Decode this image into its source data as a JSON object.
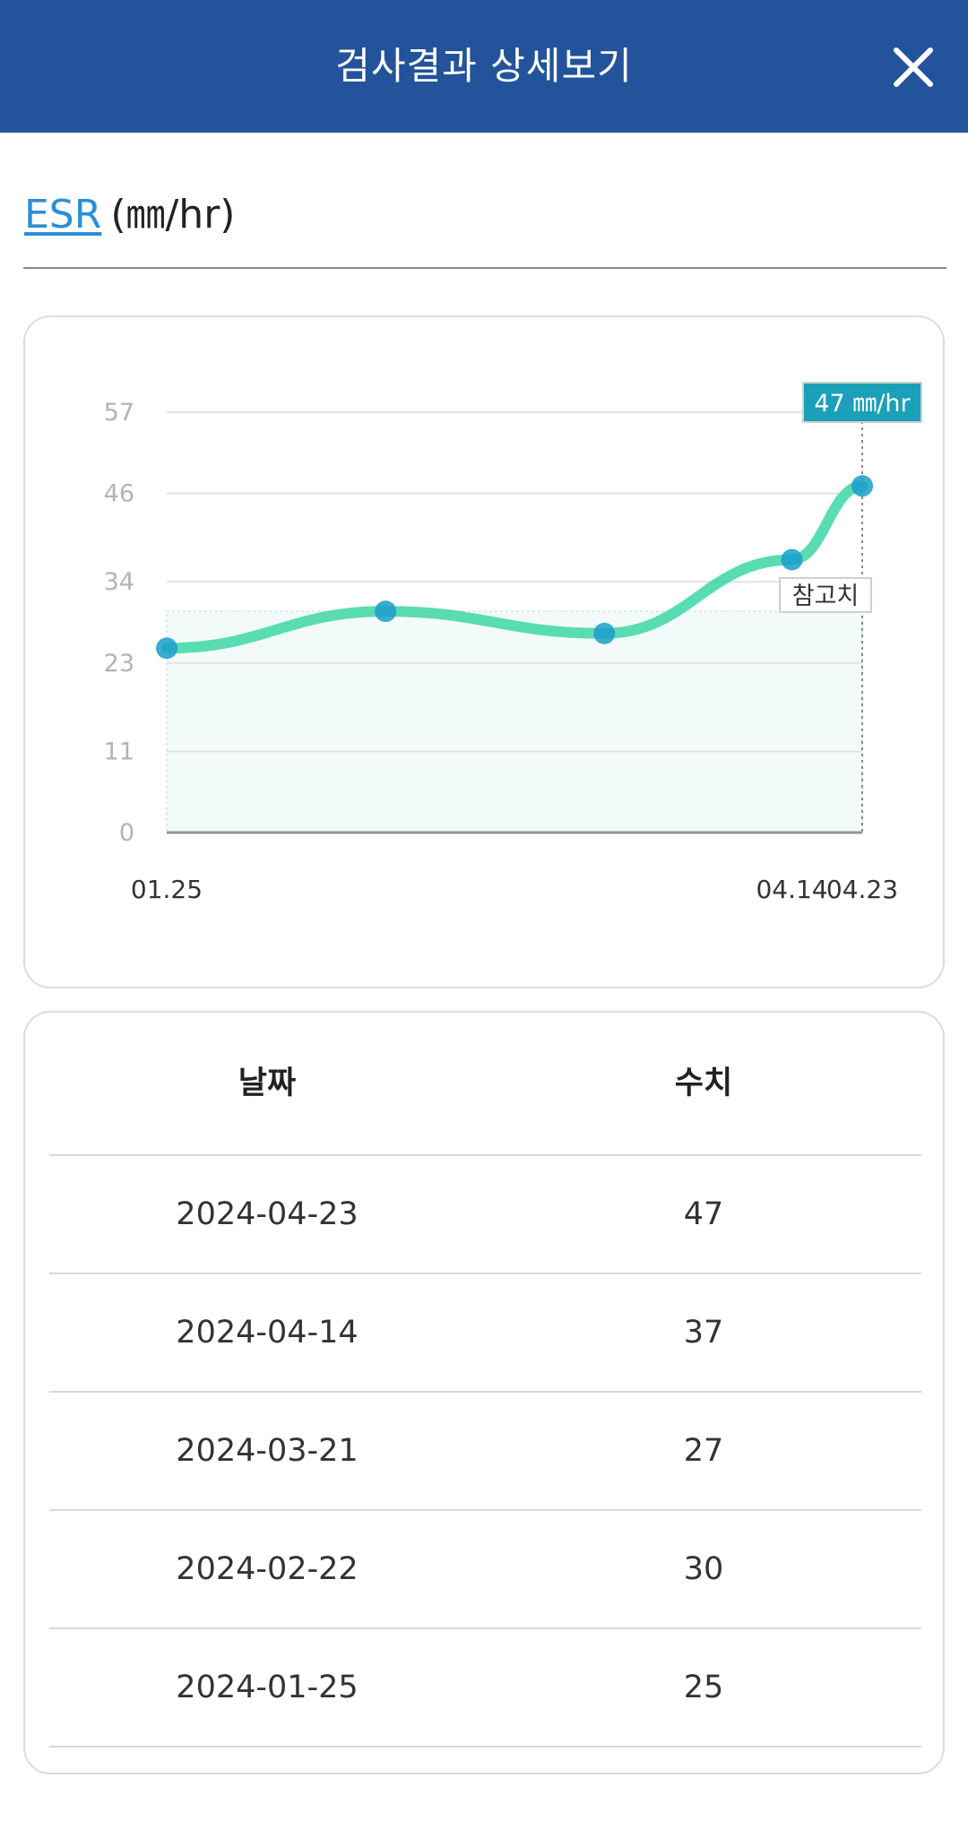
{
  "header": {
    "title": "검사결과 상세보기",
    "close_icon": "close-icon"
  },
  "item": {
    "name": "ESR",
    "unit": "(㎜/hr)"
  },
  "chart_data": {
    "type": "line",
    "y_ticks": [
      "57",
      "46",
      "34",
      "23",
      "11",
      "0"
    ],
    "ylim": [
      0,
      57
    ],
    "x_tick_labels": [
      "01.25",
      "04.14",
      "04.23"
    ],
    "x": [
      "2024-01-25",
      "2024-02-22",
      "2024-03-21",
      "2024-04-14",
      "2024-04-23"
    ],
    "values": [
      25,
      30,
      27,
      37,
      47
    ],
    "reference_range": [
      0,
      30
    ],
    "reference_label": "참고치",
    "tooltip": "47 ㎜/hr",
    "line_color": "#3dd6a5",
    "point_color": "#1a9ec9",
    "tooltip_color": "#1aa0b8",
    "grid": true
  },
  "table": {
    "headers": [
      "날짜",
      "수치"
    ],
    "rows": [
      [
        "2024-04-23",
        "47"
      ],
      [
        "2024-04-14",
        "37"
      ],
      [
        "2024-03-21",
        "27"
      ],
      [
        "2024-02-22",
        "30"
      ],
      [
        "2024-01-25",
        "25"
      ]
    ]
  }
}
